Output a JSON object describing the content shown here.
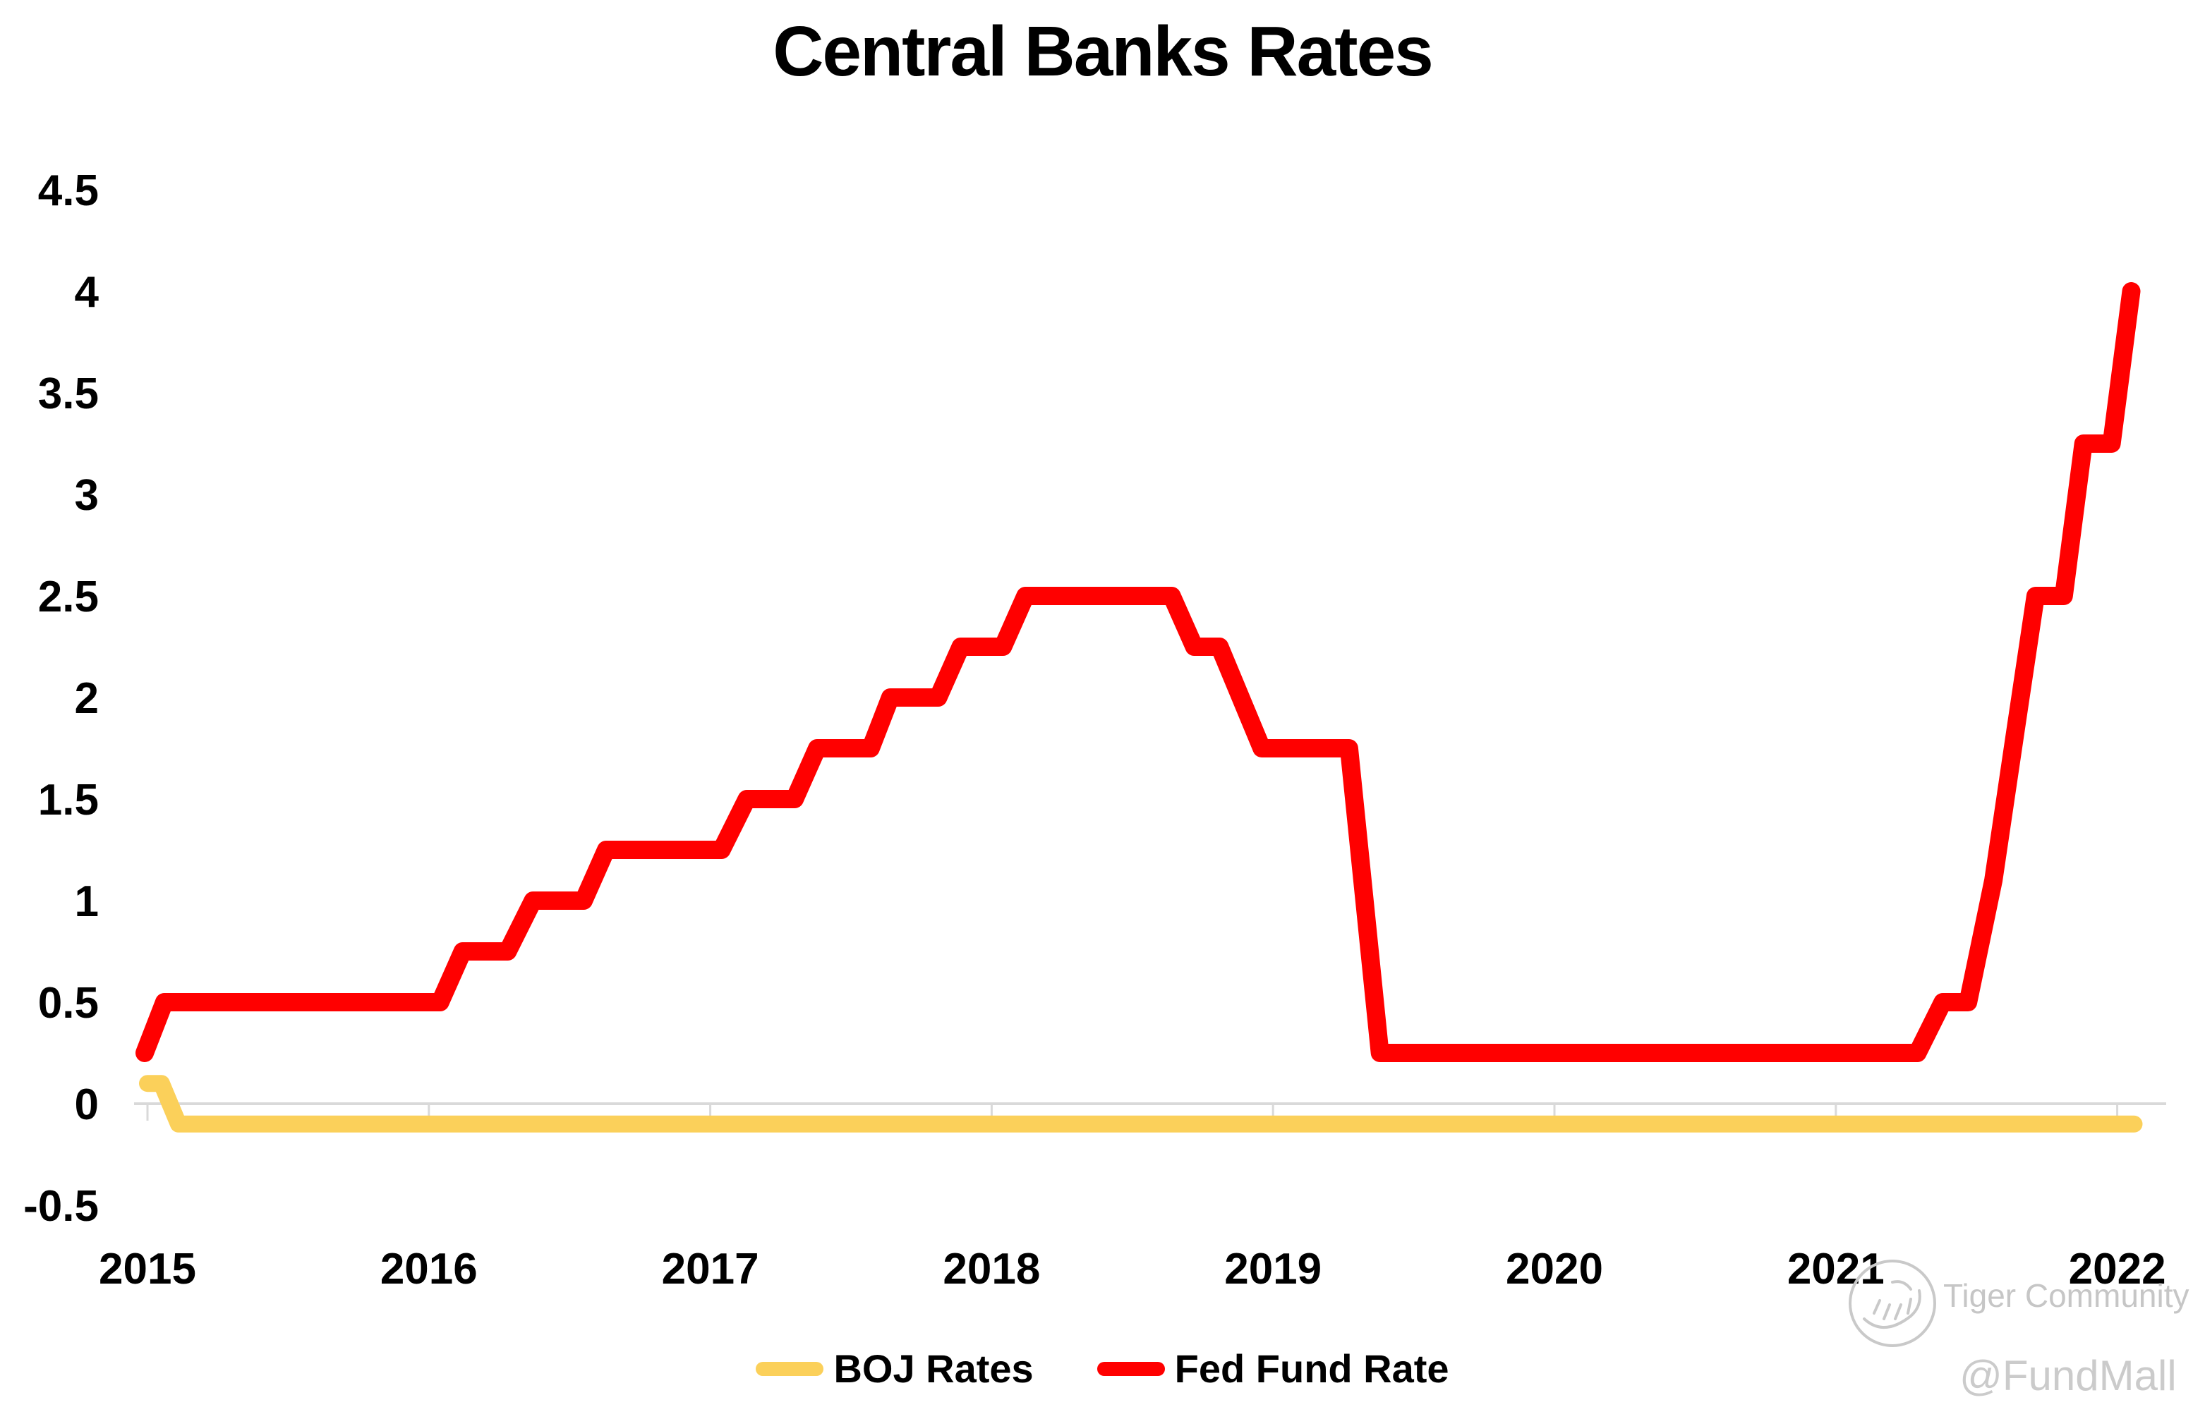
{
  "title": "Central Banks Rates",
  "watermark": {
    "logo_icon": "tiger-stamp-logo",
    "community": "Tiger Community",
    "handle": "@FundMall"
  },
  "chart_data": {
    "type": "line",
    "title": "Central Banks Rates",
    "xlabel": "",
    "ylabel": "",
    "x_ticks": [
      "2015",
      "2016",
      "2017",
      "2018",
      "2019",
      "2020",
      "2021",
      "2022"
    ],
    "x_tick_values": [
      2015,
      2016,
      2017,
      2018,
      2019,
      2020,
      2021,
      2022
    ],
    "xlim": [
      2014.95,
      2022.2
    ],
    "y_ticks": [
      "4.5",
      "4",
      "3.5",
      "3",
      "2.5",
      "2",
      "1.5",
      "1",
      "0.5",
      "0",
      "-0.5"
    ],
    "y_tick_values": [
      4.5,
      4,
      3.5,
      3,
      2.5,
      2,
      1.5,
      1,
      0.5,
      0,
      -0.5
    ],
    "ylim": [
      -0.5,
      4.5
    ],
    "grid": false,
    "legend_position": "bottom",
    "axis_color": "#d9d9d9",
    "series": [
      {
        "name": "BOJ Rates",
        "color": "#fbd05a",
        "stroke_width": 24,
        "points": [
          [
            2015.0,
            0.1
          ],
          [
            2015.05,
            0.1
          ],
          [
            2015.11,
            -0.1
          ],
          [
            2022.06,
            -0.1
          ]
        ]
      },
      {
        "name": "Fed Fund Rate",
        "color": "#ff0000",
        "stroke_width": 26,
        "points": [
          [
            2014.99,
            0.25
          ],
          [
            2015.06,
            0.5
          ],
          [
            2016.04,
            0.5
          ],
          [
            2016.12,
            0.75
          ],
          [
            2016.28,
            0.75
          ],
          [
            2016.37,
            1.0
          ],
          [
            2016.55,
            1.0
          ],
          [
            2016.63,
            1.25
          ],
          [
            2017.04,
            1.25
          ],
          [
            2017.13,
            1.5
          ],
          [
            2017.3,
            1.5
          ],
          [
            2017.38,
            1.75
          ],
          [
            2017.57,
            1.75
          ],
          [
            2017.64,
            2.0
          ],
          [
            2017.81,
            2.0
          ],
          [
            2017.89,
            2.25
          ],
          [
            2018.04,
            2.25
          ],
          [
            2018.12,
            2.5
          ],
          [
            2018.64,
            2.5
          ],
          [
            2018.72,
            2.25
          ],
          [
            2018.81,
            2.25
          ],
          [
            2018.96,
            1.75
          ],
          [
            2019.27,
            1.75
          ],
          [
            2019.38,
            0.25
          ],
          [
            2021.29,
            0.25
          ],
          [
            2021.38,
            0.5
          ],
          [
            2021.47,
            0.5
          ],
          [
            2021.56,
            1.1
          ],
          [
            2021.64,
            1.85
          ],
          [
            2021.71,
            2.5
          ],
          [
            2021.81,
            2.5
          ],
          [
            2021.88,
            3.25
          ],
          [
            2021.98,
            3.25
          ],
          [
            2022.05,
            4.0
          ]
        ]
      }
    ]
  }
}
